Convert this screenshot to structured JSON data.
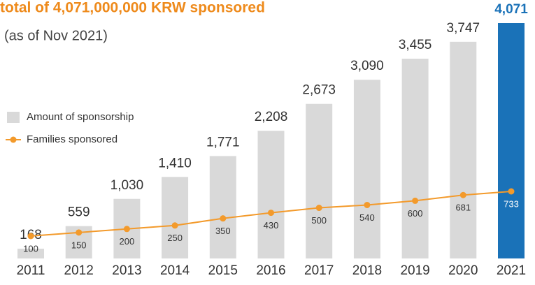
{
  "chart_data": {
    "type": "bar",
    "title": "total of 4,071,000,000 KRW sponsored",
    "subtitle": "(as of Nov 2021)",
    "categories": [
      "2011",
      "2012",
      "2013",
      "2014",
      "2015",
      "2016",
      "2017",
      "2018",
      "2019",
      "2020",
      "2021"
    ],
    "series": [
      {
        "name": "Amount of sponsorship",
        "type": "bar",
        "color": "#d9d9d9",
        "colors": [
          "#d9d9d9",
          "#d9d9d9",
          "#d9d9d9",
          "#d9d9d9",
          "#d9d9d9",
          "#d9d9d9",
          "#d9d9d9",
          "#d9d9d9",
          "#d9d9d9",
          "#d9d9d9",
          "#1a72b8"
        ],
        "values": [
          168,
          559,
          1030,
          1410,
          1771,
          2208,
          2673,
          3090,
          3455,
          3747,
          4071
        ],
        "value_labels": [
          "168",
          "559",
          "1,030",
          "1,410",
          "1,771",
          "2,208",
          "2,673",
          "3,090",
          "3,455",
          "3,747",
          "4,071"
        ]
      },
      {
        "name": "Families sponsored",
        "type": "line",
        "color": "#f39a2b",
        "values": [
          100,
          150,
          200,
          250,
          350,
          430,
          500,
          540,
          600,
          681,
          733
        ]
      }
    ],
    "legend": "left"
  }
}
